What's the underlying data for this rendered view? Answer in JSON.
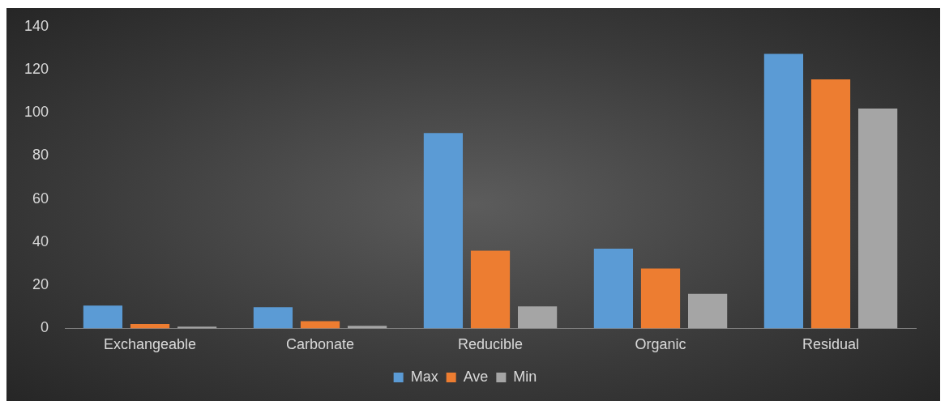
{
  "chart_data": {
    "type": "bar",
    "categories": [
      "Exchangeable",
      "Carbonate",
      "Reducible",
      "Organic",
      "Residual"
    ],
    "series": [
      {
        "name": "Max",
        "color": "#5b9bd5",
        "values": [
          10.6,
          9.8,
          90.6,
          37,
          127.3
        ]
      },
      {
        "name": "Ave",
        "color": "#ed7d31",
        "values": [
          2,
          3.3,
          36,
          27.8,
          115.5
        ]
      },
      {
        "name": "Min",
        "color": "#a5a5a5",
        "values": [
          0.8,
          1.2,
          10.2,
          16,
          102
        ]
      }
    ],
    "ylim": [
      0,
      140
    ],
    "yticks": [
      0,
      20,
      40,
      60,
      80,
      100,
      120,
      140
    ],
    "grid": false,
    "legend": "bottom"
  }
}
